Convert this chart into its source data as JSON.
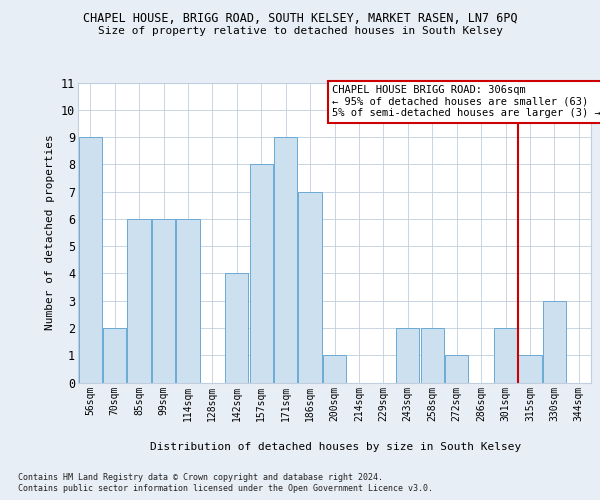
{
  "title": "CHAPEL HOUSE, BRIGG ROAD, SOUTH KELSEY, MARKET RASEN, LN7 6PQ",
  "subtitle": "Size of property relative to detached houses in South Kelsey",
  "xlabel": "Distribution of detached houses by size in South Kelsey",
  "ylabel": "Number of detached properties",
  "categories": [
    "56sqm",
    "70sqm",
    "85sqm",
    "99sqm",
    "114sqm",
    "128sqm",
    "142sqm",
    "157sqm",
    "171sqm",
    "186sqm",
    "200sqm",
    "214sqm",
    "229sqm",
    "243sqm",
    "258sqm",
    "272sqm",
    "286sqm",
    "301sqm",
    "315sqm",
    "330sqm",
    "344sqm"
  ],
  "values": [
    9,
    2,
    6,
    6,
    6,
    0,
    4,
    8,
    9,
    7,
    1,
    0,
    0,
    2,
    2,
    1,
    0,
    2,
    1,
    3,
    0
  ],
  "bar_color": "#cde0f0",
  "bar_edge_color": "#6aaad4",
  "ylim": [
    0,
    11
  ],
  "yticks": [
    0,
    1,
    2,
    3,
    4,
    5,
    6,
    7,
    8,
    9,
    10,
    11
  ],
  "vline_x_idx": 17.5,
  "vline_color": "#cc0000",
  "annotation_line1": "CHAPEL HOUSE BRIGG ROAD: 306sqm",
  "annotation_line2": "← 95% of detached houses are smaller (63)",
  "annotation_line3": "5% of semi-detached houses are larger (3) →",
  "footer1": "Contains HM Land Registry data © Crown copyright and database right 2024.",
  "footer2": "Contains public sector information licensed under the Open Government Licence v3.0.",
  "bg_color": "#e8eef5",
  "plot_bg_color": "#ffffff",
  "grid_color": "#c0cedd"
}
